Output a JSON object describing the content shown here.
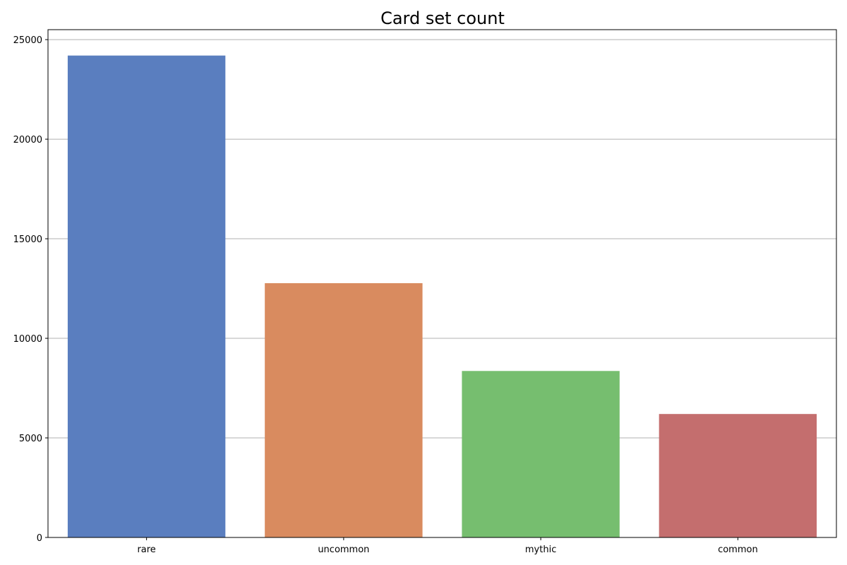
{
  "chart_data": {
    "type": "bar",
    "title": "Card set count",
    "xlabel": "",
    "ylabel": "",
    "categories": [
      "rare",
      "uncommon",
      "mythic",
      "common"
    ],
    "values": [
      24200,
      12770,
      8360,
      6200
    ],
    "colors": [
      "#5a7ebf",
      "#d98b5f",
      "#76be6f",
      "#c46e6e"
    ],
    "ylim": [
      0,
      25500
    ],
    "yticks": [
      0,
      5000,
      10000,
      15000,
      20000,
      25000
    ],
    "ytick_labels": [
      "0",
      "5000",
      "10000",
      "15000",
      "20000",
      "25000"
    ],
    "grid": "y",
    "legend": "none"
  }
}
